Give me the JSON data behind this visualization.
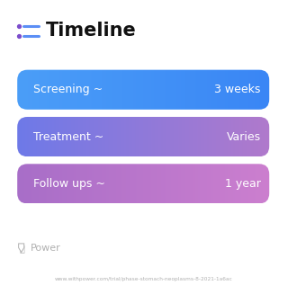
{
  "title": "Timeline",
  "title_fontsize": 15,
  "title_color": "#111111",
  "title_bold": true,
  "icon_color_dot": "#7c4dcc",
  "icon_color_line": "#5b8ef5",
  "background_color": "#ffffff",
  "rows": [
    {
      "label": "Screening ~",
      "value": "3 weeks",
      "color_left": "#4b9ef8",
      "color_right": "#3a86f5"
    },
    {
      "label": "Treatment ~",
      "value": "Varies",
      "color_left": "#6e79e8",
      "color_right": "#b07acc"
    },
    {
      "label": "Follow ups ~",
      "value": "1 year",
      "color_left": "#a86ec8",
      "color_right": "#cc7fcf"
    }
  ],
  "row_text_color": "#ffffff",
  "row_label_fontsize": 9,
  "row_value_fontsize": 9,
  "power_text": "Power",
  "power_color": "#b0b0b0",
  "url_text": "www.withpower.com/trial/phase-stomach-neoplasms-8-2021-1a6ac",
  "url_color": "#b0b0b0",
  "url_fontsize": 4.2,
  "power_fontsize": 8
}
